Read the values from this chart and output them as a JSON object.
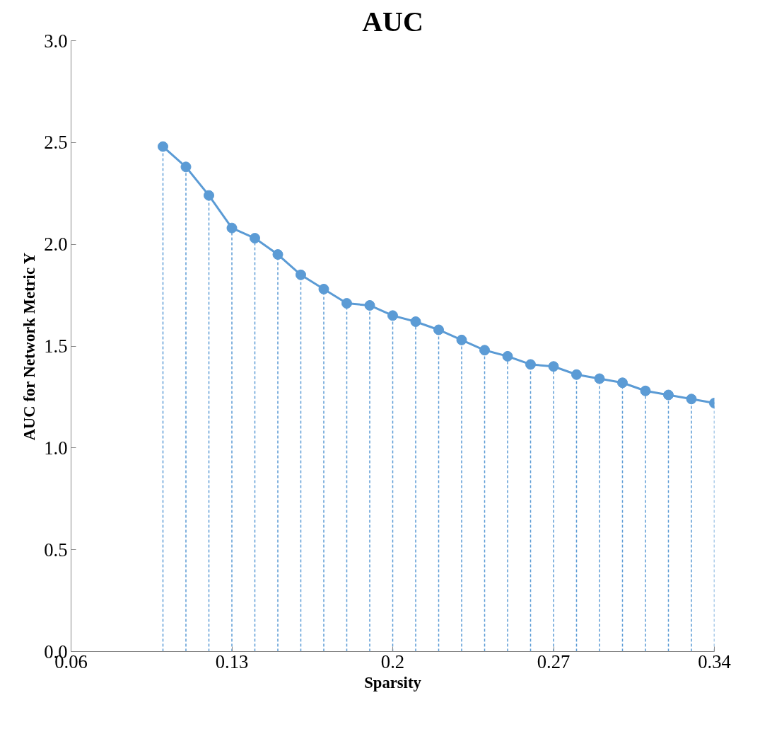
{
  "chart_data": {
    "type": "line",
    "title": "AUC",
    "xlabel": "Sparsity",
    "ylabel": "AUC for Network Metric Y",
    "x": [
      0.1,
      0.11,
      0.12,
      0.13,
      0.14,
      0.15,
      0.16,
      0.17,
      0.18,
      0.19,
      0.2,
      0.21,
      0.22,
      0.23,
      0.24,
      0.25,
      0.26,
      0.27,
      0.28,
      0.29,
      0.3,
      0.31,
      0.32,
      0.33,
      0.34
    ],
    "series": [
      {
        "color": "#5b9bd5",
        "line_style": "solid",
        "values": [
          2.48,
          2.38,
          2.24,
          2.08,
          2.03,
          1.95,
          1.85,
          1.78,
          1.71,
          1.7,
          1.65,
          1.62,
          1.58,
          1.53,
          1.48,
          1.45,
          1.41,
          1.4,
          1.36,
          1.34,
          1.32,
          1.28,
          1.26,
          1.24,
          1.22
        ]
      },
      {
        "type": "lollipop",
        "color": "#5b9bd5",
        "marker": "circle",
        "line_style": "dashed",
        "values": [
          2.48,
          2.38,
          2.24,
          2.08,
          2.03,
          1.95,
          1.85,
          1.78,
          1.71,
          1.7,
          1.65,
          1.62,
          1.58,
          1.53,
          1.48,
          1.45,
          1.41,
          1.4,
          1.36,
          1.34,
          1.32,
          1.28,
          1.26,
          1.24,
          1.22
        ]
      }
    ],
    "xlim": [
      0.06,
      0.34
    ],
    "xticks": [
      0.06,
      0.13,
      {
        "value": 0.2,
        "label": "0.2"
      },
      0.27,
      0.34
    ],
    "ylim": [
      0,
      3.0
    ],
    "yticks": [
      {
        "value": 0,
        "label": "0.0"
      },
      0.5,
      {
        "value": 1,
        "label": "1.0"
      },
      1.5,
      {
        "value": 2,
        "label": "2.0"
      },
      2.5,
      {
        "value": 3,
        "label": "3.0"
      }
    ],
    "grid": false
  }
}
